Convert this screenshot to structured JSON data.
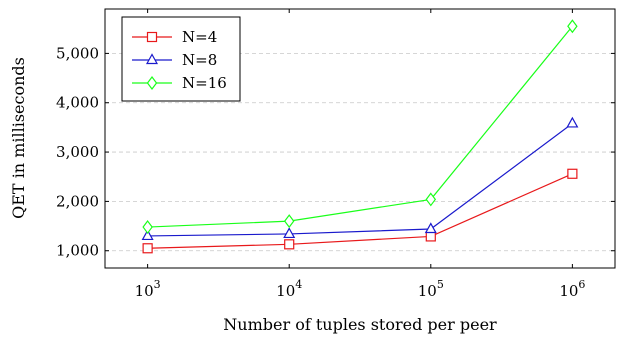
{
  "chart_data": {
    "type": "line",
    "title": "",
    "xlabel": "Number of tuples stored per peer",
    "ylabel": "QET in milliseconds",
    "x_scale": "log",
    "x": [
      1000,
      10000,
      100000,
      1000000
    ],
    "x_tick_labels": [
      {
        "base": "10",
        "exp": "3"
      },
      {
        "base": "10",
        "exp": "4"
      },
      {
        "base": "10",
        "exp": "5"
      },
      {
        "base": "10",
        "exp": "6"
      }
    ],
    "y_ticks": [
      1000,
      2000,
      3000,
      4000,
      5000
    ],
    "y_tick_labels": [
      "1,000",
      "2,000",
      "3,000",
      "4,000",
      "5,000"
    ],
    "xlim": [
      500,
      2000000
    ],
    "ylim": [
      650,
      5900
    ],
    "grid": "horizontal dashed",
    "legend_position": "top-left",
    "series": [
      {
        "name": "N=4",
        "color": "#e8191b",
        "marker": "square",
        "values": [
          1050,
          1130,
          1290,
          2560
        ]
      },
      {
        "name": "N=8",
        "color": "#1a1acc",
        "marker": "triangle",
        "values": [
          1300,
          1340,
          1440,
          3580
        ]
      },
      {
        "name": "N=16",
        "color": "#1aff1a",
        "marker": "diamond",
        "values": [
          1480,
          1600,
          2040,
          5550
        ]
      }
    ]
  }
}
